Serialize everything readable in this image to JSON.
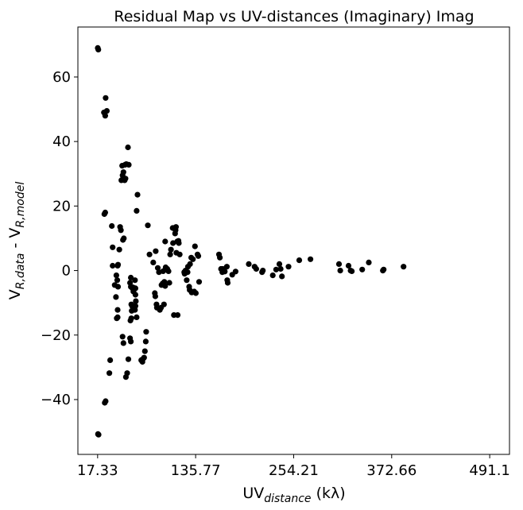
{
  "chart_data": {
    "type": "scatter",
    "title": "Residual Map vs UV-distances (Imaginary) Imag",
    "xlabel": {
      "main": "UV",
      "sub": "distance",
      "tail": " (kλ)"
    },
    "ylabel": {
      "a": "V",
      "a_sub": "R,data",
      "mid": " - V",
      "b_sub": "R,model"
    },
    "xlim": [
      -6.5,
      515.0
    ],
    "ylim": [
      -57.0,
      75.5
    ],
    "xticks": [
      17.33,
      135.77,
      254.21,
      372.66,
      491.1
    ],
    "xtick_labels": [
      "17.33",
      "135.77",
      "254.21",
      "372.66",
      "491.1"
    ],
    "yticks": [
      -40,
      -20,
      0,
      20,
      40,
      60
    ],
    "ytick_labels": [
      "−40",
      "−20",
      "0",
      "20",
      "40",
      "60"
    ],
    "grid": false,
    "marker_color": "#000000",
    "points": [
      [
        17.5,
        69.0
      ],
      [
        18.2,
        68.5
      ],
      [
        17.8,
        -50.7
      ],
      [
        18.5,
        -50.9
      ],
      [
        25.0,
        49.0
      ],
      [
        27.0,
        53.5
      ],
      [
        26.5,
        48.0
      ],
      [
        28.5,
        49.5
      ],
      [
        25.5,
        17.5
      ],
      [
        26.5,
        18.0
      ],
      [
        26.0,
        -41.0
      ],
      [
        27.0,
        -40.5
      ],
      [
        31.5,
        -31.8
      ],
      [
        32.5,
        -27.8
      ],
      [
        34.5,
        13.8
      ],
      [
        35.5,
        7.2
      ],
      [
        35.5,
        1.5
      ],
      [
        38.0,
        -4.5
      ],
      [
        40.0,
        -1.5
      ],
      [
        41.0,
        -3.0
      ],
      [
        41.5,
        1.5
      ],
      [
        42.0,
        1.8
      ],
      [
        39.5,
        -8.2
      ],
      [
        40.5,
        -14.8
      ],
      [
        41.5,
        -14.5
      ],
      [
        41.5,
        -12.2
      ],
      [
        42.0,
        -5.0
      ],
      [
        43.5,
        6.5
      ],
      [
        44.5,
        13.5
      ],
      [
        45.5,
        12.5
      ],
      [
        48.0,
        9.5
      ],
      [
        49.0,
        10.0
      ],
      [
        47.0,
        32.5
      ],
      [
        46.0,
        28.0
      ],
      [
        47.5,
        29.5
      ],
      [
        50.0,
        28.0
      ],
      [
        51.0,
        28.5
      ],
      [
        52.0,
        33.0
      ],
      [
        54.0,
        38.2
      ],
      [
        55.0,
        32.8
      ],
      [
        50.5,
        32.8
      ],
      [
        48.5,
        30.5
      ],
      [
        47.5,
        -20.5
      ],
      [
        48.5,
        -22.5
      ],
      [
        51.5,
        -33.0
      ],
      [
        53.0,
        -31.8
      ],
      [
        54.5,
        -27.5
      ],
      [
        56.5,
        -21.0
      ],
      [
        57.5,
        -22.0
      ],
      [
        57.0,
        -15.5
      ],
      [
        58.0,
        -14.8
      ],
      [
        58.5,
        -12.5
      ],
      [
        58.0,
        -10.5
      ],
      [
        59.0,
        -11.0
      ],
      [
        56.5,
        -3.8
      ],
      [
        57.5,
        -2.2
      ],
      [
        59.5,
        -5.5
      ],
      [
        60.5,
        -6.5
      ],
      [
        61.5,
        -5.8
      ],
      [
        63.0,
        -5.5
      ],
      [
        62.5,
        -3.0
      ],
      [
        63.0,
        -7.5
      ],
      [
        63.5,
        -9.5
      ],
      [
        63.0,
        -11.0
      ],
      [
        62.5,
        -12.2
      ],
      [
        64.5,
        -14.5
      ],
      [
        64.5,
        18.5
      ],
      [
        65.5,
        23.5
      ],
      [
        57.5,
        -5.0
      ],
      [
        60.0,
        -5.2
      ],
      [
        70.0,
        -27.8
      ],
      [
        71.5,
        -28.3
      ],
      [
        72.0,
        -27.5
      ],
      [
        73.5,
        -27.0
      ],
      [
        74.5,
        -25.0
      ],
      [
        75.5,
        -22.0
      ],
      [
        76.0,
        -19.0
      ],
      [
        78.0,
        14.0
      ],
      [
        80.0,
        5.0
      ],
      [
        84.5,
        2.5
      ],
      [
        87.5,
        6.0
      ],
      [
        86.5,
        -7.0
      ],
      [
        87.0,
        -8.0
      ],
      [
        88.5,
        -10.5
      ],
      [
        89.0,
        -11.5
      ],
      [
        90.0,
        0.8
      ],
      [
        91.5,
        -0.5
      ],
      [
        92.5,
        -12.2
      ],
      [
        94.0,
        -11.5
      ],
      [
        94.5,
        -4.5
      ],
      [
        96.5,
        -0.2
      ],
      [
        96.0,
        -4.0
      ],
      [
        97.5,
        -10.5
      ],
      [
        98.0,
        -3.5
      ],
      [
        99.0,
        -4.8
      ],
      [
        99.0,
        9.0
      ],
      [
        99.5,
        1.0
      ],
      [
        101.5,
        0.5
      ],
      [
        103.0,
        -0.2
      ],
      [
        104.0,
        -3.8
      ],
      [
        105.0,
        5.0
      ],
      [
        106.0,
        6.5
      ],
      [
        108.0,
        13.2
      ],
      [
        108.5,
        8.5
      ],
      [
        109.5,
        -13.8
      ],
      [
        111.0,
        11.5
      ],
      [
        111.5,
        12.5
      ],
      [
        112.0,
        13.5
      ],
      [
        112.5,
        5.5
      ],
      [
        113.5,
        9.0
      ],
      [
        114.0,
        -13.8
      ],
      [
        115.0,
        9.2
      ],
      [
        115.5,
        8.5
      ],
      [
        116.5,
        5.0
      ],
      [
        122.0,
        -0.5
      ],
      [
        122.5,
        -1.0
      ],
      [
        123.5,
        0.0
      ],
      [
        125.0,
        -3.0
      ],
      [
        126.0,
        -0.5
      ],
      [
        126.5,
        1.2
      ],
      [
        128.0,
        -5.0
      ],
      [
        128.5,
        -6.0
      ],
      [
        129.0,
        2.0
      ],
      [
        130.5,
        4.0
      ],
      [
        131.0,
        -6.8
      ],
      [
        132.5,
        3.5
      ],
      [
        134.0,
        -6.5
      ],
      [
        135.0,
        7.5
      ],
      [
        136.0,
        -7.0
      ],
      [
        138.0,
        5.0
      ],
      [
        139.0,
        4.5
      ],
      [
        140.0,
        -3.5
      ],
      [
        164.0,
        5.0
      ],
      [
        165.0,
        4.0
      ],
      [
        166.5,
        0.5
      ],
      [
        168.0,
        -0.5
      ],
      [
        168.5,
        0.5
      ],
      [
        170.0,
        0.3
      ],
      [
        171.0,
        -0.3
      ],
      [
        173.5,
        1.2
      ],
      [
        174.0,
        -3.0
      ],
      [
        174.5,
        -3.8
      ],
      [
        180.0,
        -1.3
      ],
      [
        184.0,
        -0.3
      ],
      [
        200.0,
        2.0
      ],
      [
        207.0,
        1.2
      ],
      [
        209.0,
        0.5
      ],
      [
        216.0,
        -0.5
      ],
      [
        217.0,
        0.0
      ],
      [
        229.0,
        -1.5
      ],
      [
        233.0,
        0.3
      ],
      [
        237.0,
        2.0
      ],
      [
        238.5,
        0.5
      ],
      [
        240.0,
        -1.8
      ],
      [
        248.0,
        1.2
      ],
      [
        261.0,
        3.2
      ],
      [
        274.5,
        3.5
      ],
      [
        309.0,
        2.0
      ],
      [
        310.5,
        0.0
      ],
      [
        320.5,
        1.5
      ],
      [
        323.0,
        0.0
      ],
      [
        324.5,
        -0.2
      ],
      [
        337.0,
        0.3
      ],
      [
        345.0,
        2.5
      ],
      [
        362.0,
        0.0
      ],
      [
        363.0,
        0.3
      ],
      [
        387.0,
        1.2
      ]
    ]
  }
}
